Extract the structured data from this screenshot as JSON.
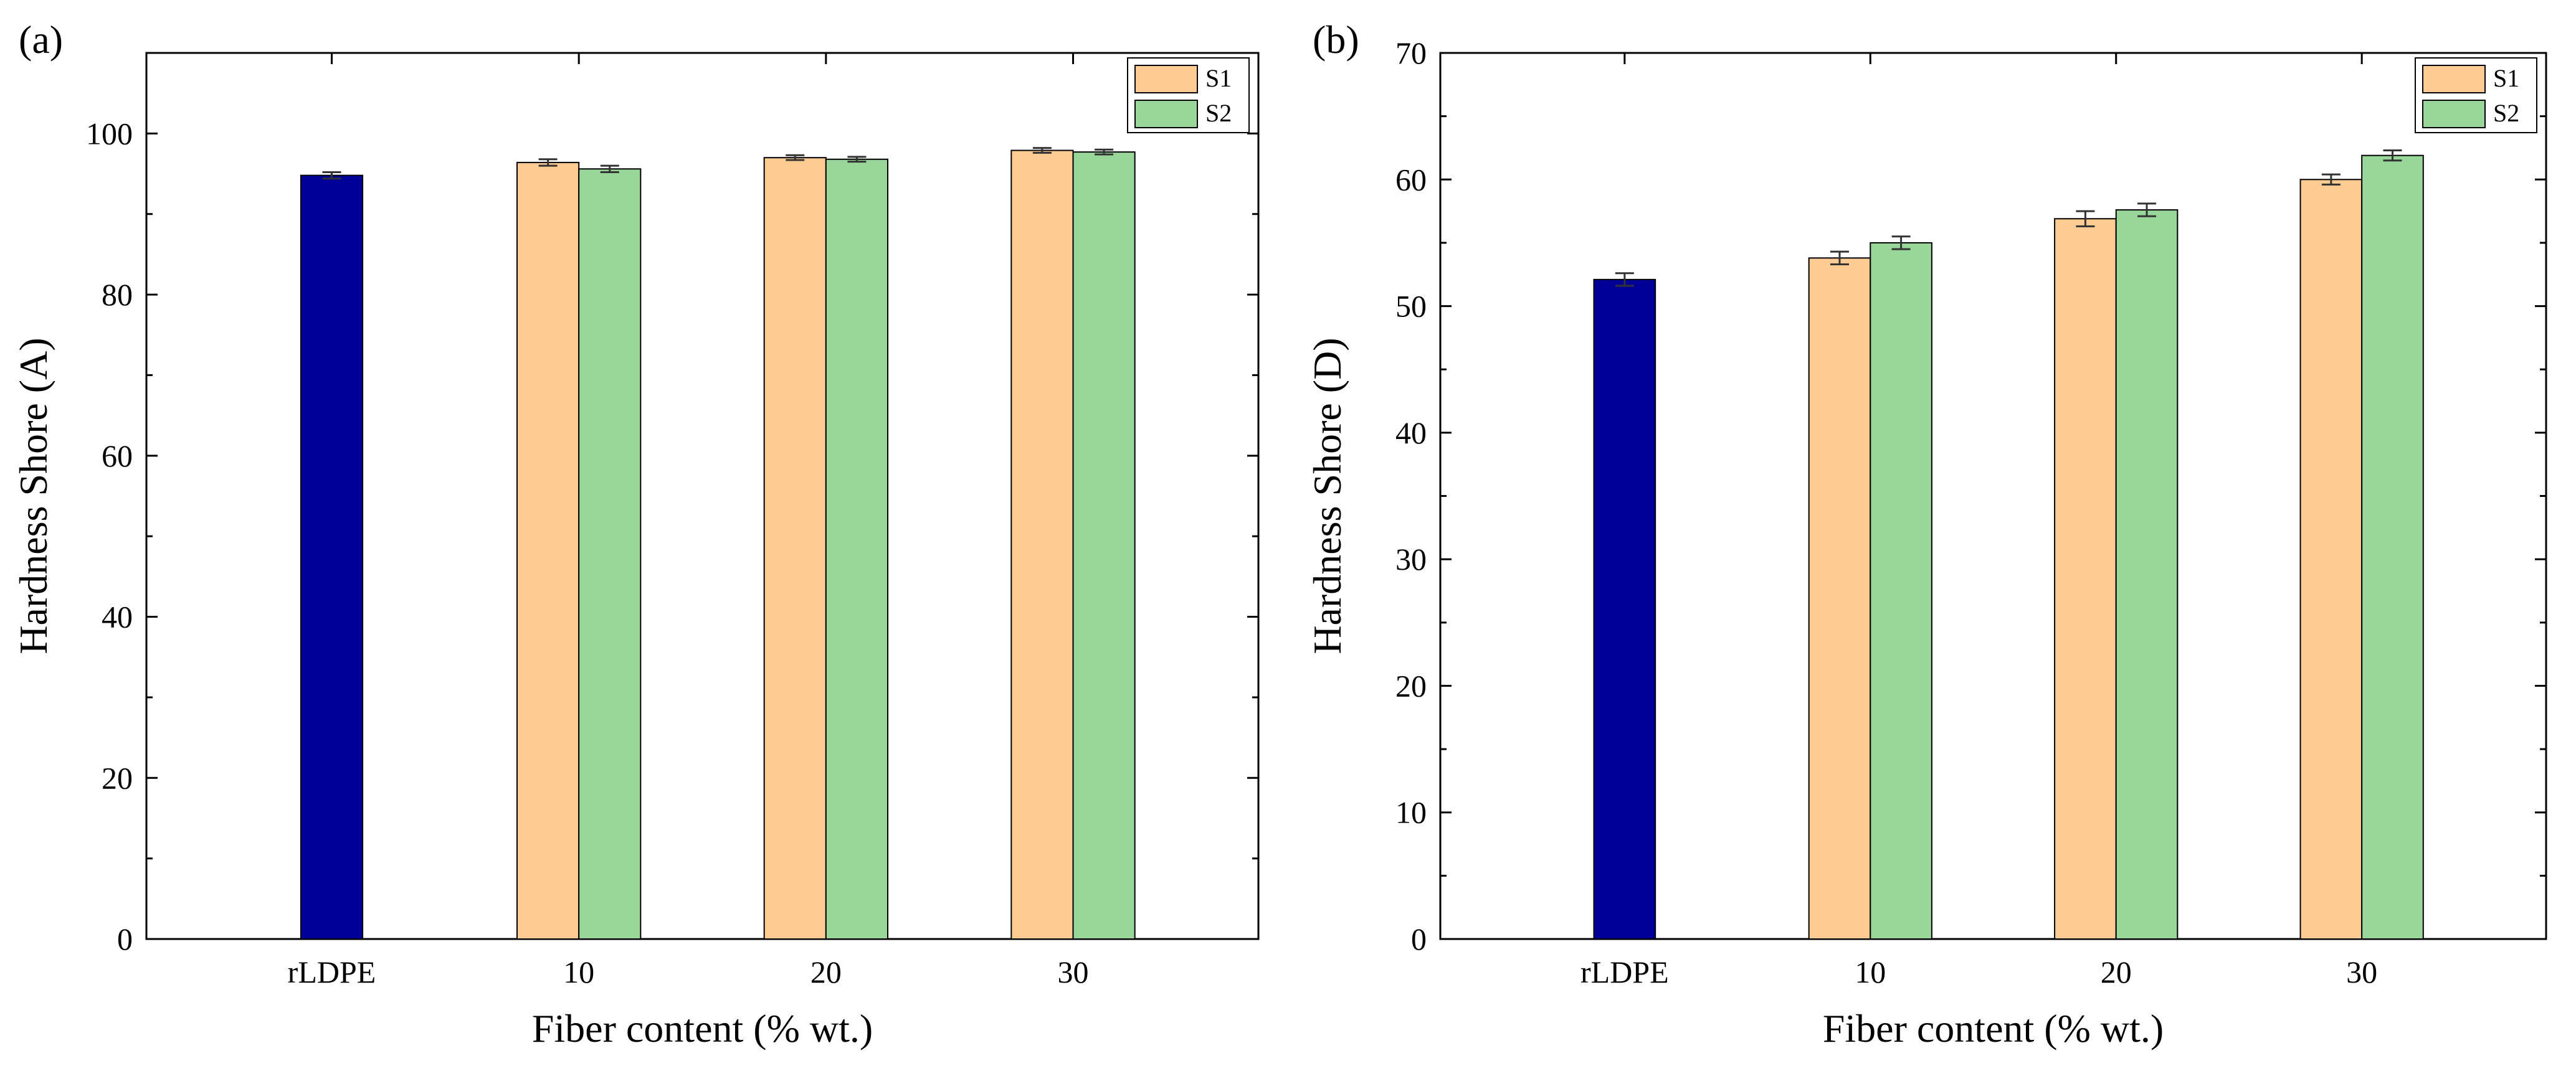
{
  "colors": {
    "baseline": "#000099",
    "S1": "#FECB92",
    "S2": "#99D699",
    "axis": "#000000",
    "error_bar": "#333333"
  },
  "chart_data": [
    {
      "panel_label": "(a)",
      "type": "bar",
      "xlabel": "Fiber content (% wt.)",
      "ylabel": "Hardness Shore (A)",
      "ylim": [
        0,
        110
      ],
      "yticks": [
        0,
        20,
        40,
        60,
        80,
        100
      ],
      "grid": false,
      "legend_position": "top-right",
      "categories": [
        "rLDPE",
        "10",
        "20",
        "30"
      ],
      "baseline": {
        "category": "rLDPE",
        "value": 94.8,
        "error": 0.4
      },
      "series": [
        {
          "name": "S1",
          "values": [
            null,
            96.4,
            97.0,
            97.9
          ],
          "errors": [
            null,
            0.4,
            0.3,
            0.3
          ]
        },
        {
          "name": "S2",
          "values": [
            null,
            95.6,
            96.8,
            97.7
          ],
          "errors": [
            null,
            0.4,
            0.3,
            0.3
          ]
        }
      ]
    },
    {
      "panel_label": "(b)",
      "type": "bar",
      "xlabel": "Fiber content (% wt.)",
      "ylabel": "Hardness Shore (D)",
      "ylim": [
        0,
        70
      ],
      "yticks": [
        0,
        10,
        20,
        30,
        40,
        50,
        60,
        70
      ],
      "grid": false,
      "legend_position": "top-right",
      "categories": [
        "rLDPE",
        "10",
        "20",
        "30"
      ],
      "baseline": {
        "category": "rLDPE",
        "value": 52.1,
        "error": 0.5
      },
      "series": [
        {
          "name": "S1",
          "values": [
            null,
            53.8,
            56.9,
            60.0
          ],
          "errors": [
            null,
            0.5,
            0.6,
            0.4
          ]
        },
        {
          "name": "S2",
          "values": [
            null,
            55.0,
            57.6,
            61.9
          ],
          "errors": [
            null,
            0.5,
            0.5,
            0.4
          ]
        }
      ]
    }
  ]
}
